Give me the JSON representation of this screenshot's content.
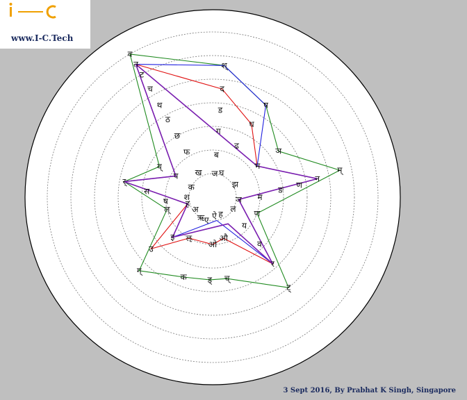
{
  "logo": {
    "site": "www.I-C.Tech"
  },
  "credit": "3 Sept 2016, By Prabhat K Singh, Singapore",
  "colors": {
    "background": "#bfbfbf",
    "green": "#1f8a1f",
    "red": "#e01010",
    "blue": "#2020e0",
    "purple": "#7a1fb0",
    "logo_orange": "#f0a000",
    "logo_blue": "#1a2a5e"
  },
  "chart_data": {
    "type": "radar",
    "rings": 7,
    "grid": true,
    "labels": [
      {
        "text": "व",
        "angle": 330,
        "r": 7
      },
      {
        "text": "त",
        "angle": 330,
        "r": 6.5
      },
      {
        "text": "ट",
        "angle": 330,
        "r": 6
      },
      {
        "text": "च",
        "angle": 330,
        "r": 5.3
      },
      {
        "text": "थ",
        "angle": 330,
        "r": 4.5
      },
      {
        "text": "ठ",
        "angle": 330,
        "r": 3.8
      },
      {
        "text": "छ",
        "angle": 330,
        "r": 3.0
      },
      {
        "text": "फ",
        "angle": 330,
        "r": 2.2
      },
      {
        "text": "ख",
        "angle": 330,
        "r": 1.2
      },
      {
        "text": "श्",
        "angle": 5,
        "r": 5.6
      },
      {
        "text": "द",
        "angle": 5,
        "r": 4.6
      },
      {
        "text": "ड",
        "angle": 5,
        "r": 3.7
      },
      {
        "text": "ग",
        "angle": 5,
        "r": 2.8
      },
      {
        "text": "ब",
        "angle": 5,
        "r": 1.8
      },
      {
        "text": "ज",
        "angle": 5,
        "r": 1.0
      },
      {
        "text": "ष",
        "angle": 30,
        "r": 4.5
      },
      {
        "text": "ध",
        "angle": 28,
        "r": 3.5
      },
      {
        "text": "ढ",
        "angle": 25,
        "r": 2.4
      },
      {
        "text": "घ",
        "angle": 20,
        "r": 1.1
      },
      {
        "text": "ञ",
        "angle": 55,
        "r": 3.4
      },
      {
        "text": "भ",
        "angle": 55,
        "r": 2.3
      },
      {
        "text": "झ",
        "angle": 60,
        "r": 1.1
      },
      {
        "text": "म्",
        "angle": 78,
        "r": 5.5
      },
      {
        "text": "न",
        "angle": 80,
        "r": 4.5
      },
      {
        "text": "ण",
        "angle": 82,
        "r": 3.7
      },
      {
        "text": "ङ",
        "angle": 84,
        "r": 2.9
      },
      {
        "text": "म",
        "angle": 90,
        "r": 2.0
      },
      {
        "text": "ञ",
        "angle": 95,
        "r": 1.1
      },
      {
        "text": "ण",
        "angle": 110,
        "r": 2.0
      },
      {
        "text": "ल",
        "angle": 120,
        "r": 1.0
      },
      {
        "text": "ह",
        "angle": 155,
        "r": 0.8
      },
      {
        "text": "य",
        "angle": 132,
        "r": 1.8
      },
      {
        "text": "व",
        "angle": 135,
        "r": 2.8
      },
      {
        "text": "र",
        "angle": 138,
        "r": 3.8
      },
      {
        "text": "ट्",
        "angle": 140,
        "r": 5.0
      },
      {
        "text": "च्",
        "angle": 170,
        "r": 3.5
      },
      {
        "text": "ड्",
        "angle": 182,
        "r": 3.5
      },
      {
        "text": "क",
        "angle": 200,
        "r": 3.6
      },
      {
        "text": "ग्",
        "angle": 225,
        "r": 4.4
      },
      {
        "text": "उ",
        "angle": 230,
        "r": 3.4
      },
      {
        "text": "इ",
        "angle": 225,
        "r": 2.4
      },
      {
        "text": "ऌ",
        "angle": 210,
        "r": 2.0
      },
      {
        "text": "ओ",
        "angle": 180,
        "r": 2.0
      },
      {
        "text": "औ",
        "angle": 165,
        "r": 1.8
      },
      {
        "text": "ए",
        "angle": 195,
        "r": 1.0
      },
      {
        "text": "ऐ",
        "angle": 175,
        "r": 0.8
      },
      {
        "text": "ऋ",
        "angle": 210,
        "r": 1.0
      },
      {
        "text": "अ",
        "angle": 235,
        "r": 0.9
      },
      {
        "text": "ह",
        "angle": 255,
        "r": 1.1
      },
      {
        "text": "ल्",
        "angle": 255,
        "r": 2.0
      },
      {
        "text": "स",
        "angle": 275,
        "r": 2.8
      },
      {
        "text": "र्",
        "angle": 280,
        "r": 3.8
      },
      {
        "text": "ष",
        "angle": 265,
        "r": 2.0
      },
      {
        "text": "य्",
        "angle": 300,
        "r": 2.6
      },
      {
        "text": "प",
        "angle": 300,
        "r": 1.8
      },
      {
        "text": "श",
        "angle": 270,
        "r": 1.1
      },
      {
        "text": "क",
        "angle": 295,
        "r": 1.0
      }
    ],
    "series": [
      {
        "color": "green",
        "points": [
          [
            330,
            7
          ],
          [
            5,
            5.6
          ],
          [
            30,
            4.5
          ],
          [
            55,
            3.4
          ],
          [
            78,
            5.5
          ],
          [
            110,
            2.0
          ],
          [
            140,
            5.0
          ],
          [
            170,
            3.5
          ],
          [
            182,
            3.5
          ],
          [
            200,
            3.6
          ],
          [
            225,
            4.4
          ],
          [
            255,
            2.0
          ],
          [
            280,
            3.8
          ],
          [
            300,
            2.6
          ],
          [
            330,
            7
          ]
        ]
      },
      {
        "color": "red",
        "points": [
          [
            330,
            6.5
          ],
          [
            5,
            4.6
          ],
          [
            28,
            3.5
          ],
          [
            55,
            2.3
          ],
          [
            80,
            4.5
          ],
          [
            95,
            1.1
          ],
          [
            138,
            3.8
          ],
          [
            165,
            1.8
          ],
          [
            180,
            2.0
          ],
          [
            210,
            2.0
          ],
          [
            230,
            3.4
          ],
          [
            255,
            1.1
          ],
          [
            280,
            3.8
          ],
          [
            300,
            1.8
          ],
          [
            330,
            6.5
          ]
        ]
      },
      {
        "color": "blue",
        "points": [
          [
            330,
            6.5
          ],
          [
            5,
            5.6
          ],
          [
            30,
            4.5
          ],
          [
            55,
            2.3
          ],
          [
            80,
            4.5
          ],
          [
            95,
            1.1
          ],
          [
            138,
            3.8
          ],
          [
            170,
            1.0
          ],
          [
            225,
            2.4
          ],
          [
            255,
            1.1
          ],
          [
            280,
            3.8
          ],
          [
            300,
            1.8
          ],
          [
            330,
            6.5
          ]
        ]
      },
      {
        "color": "purple",
        "points": [
          [
            330,
            6.5
          ],
          [
            55,
            2.3
          ],
          [
            80,
            4.5
          ],
          [
            95,
            1.1
          ],
          [
            138,
            3.8
          ],
          [
            150,
            1.3
          ],
          [
            225,
            2.4
          ],
          [
            255,
            1.1
          ],
          [
            280,
            3.8
          ],
          [
            300,
            1.8
          ],
          [
            330,
            6.5
          ]
        ]
      }
    ]
  }
}
